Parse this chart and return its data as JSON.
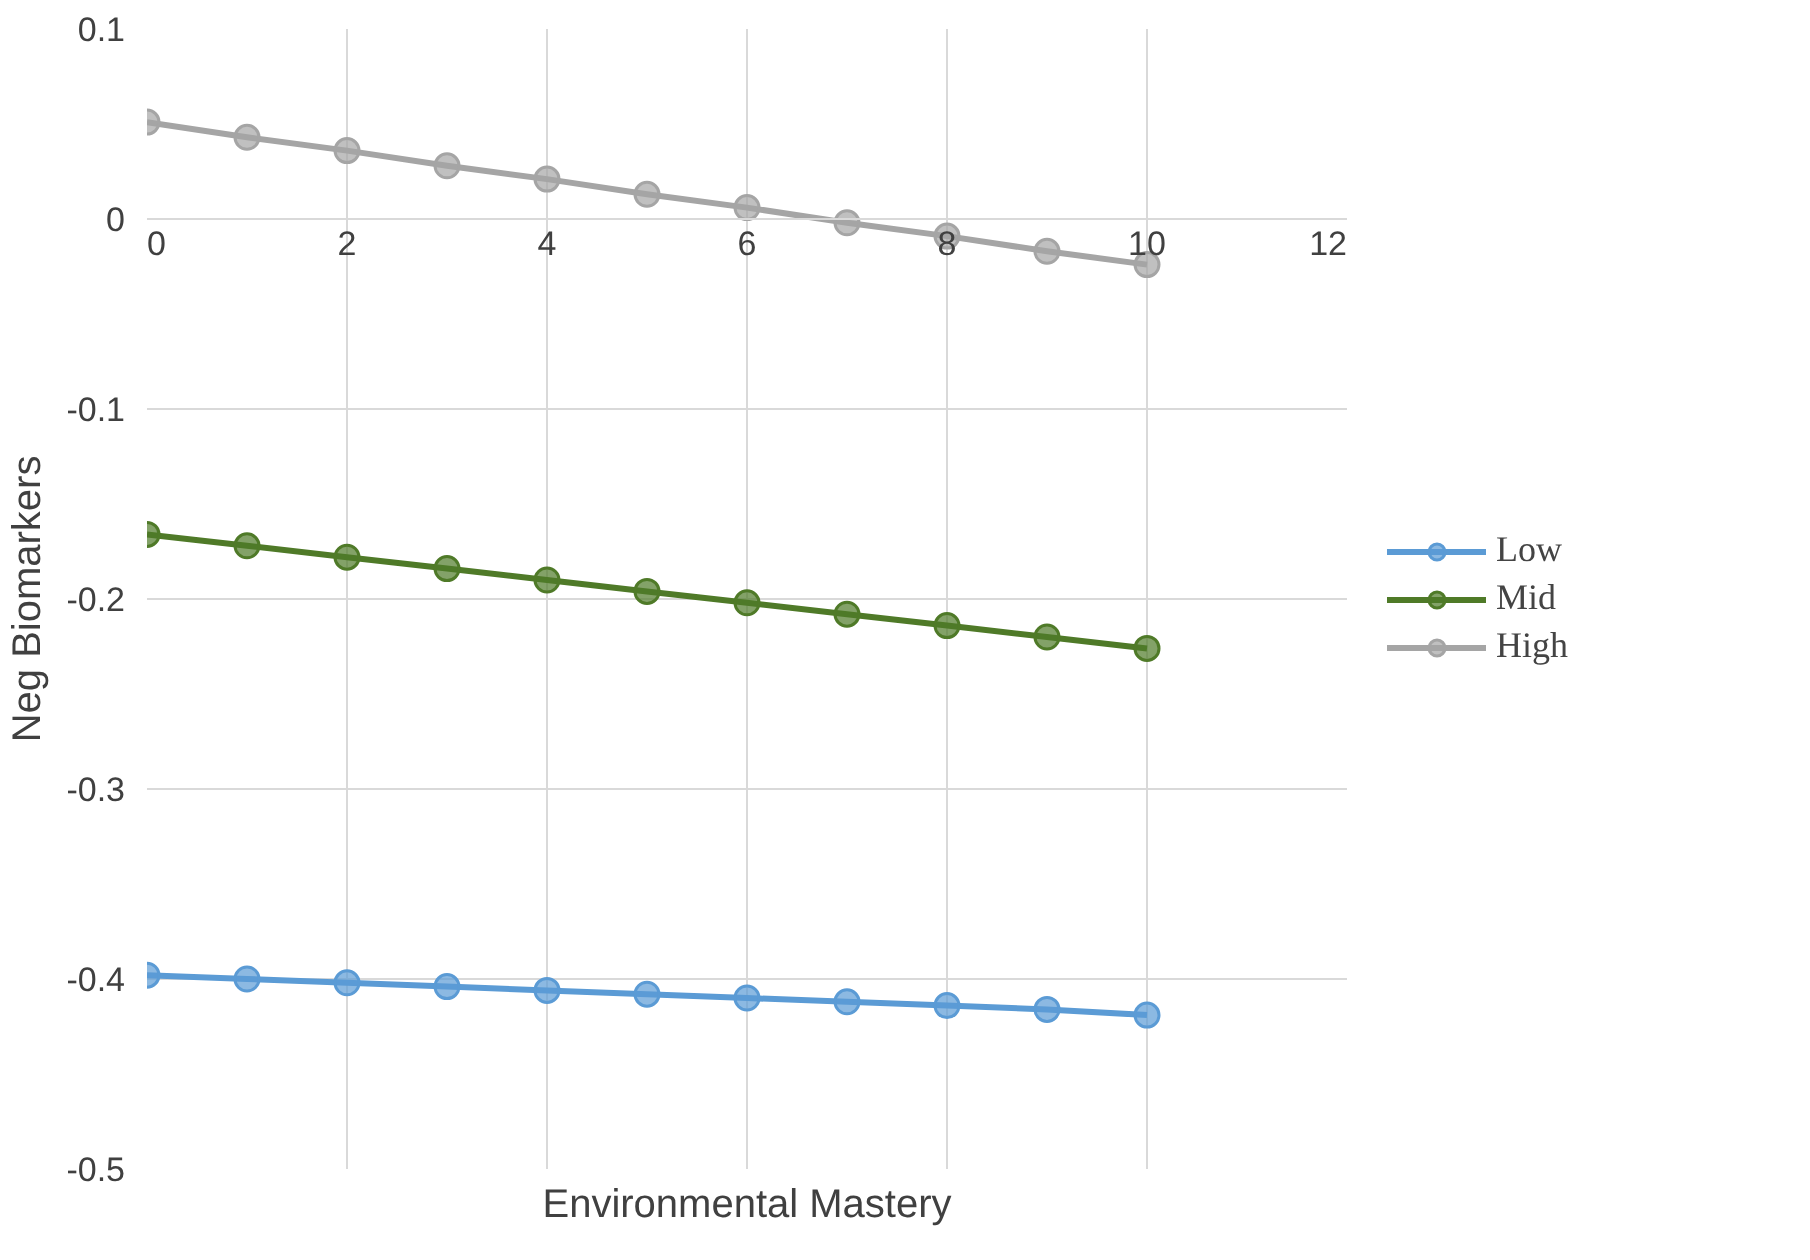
{
  "chart_data": {
    "type": "line",
    "xlabel": "Environmental Mastery",
    "ylabel": "Neg Biomarkers",
    "x": [
      0,
      1,
      2,
      3,
      4,
      5,
      6,
      7,
      8,
      9,
      10
    ],
    "series": [
      {
        "name": "Low",
        "color": "#5b9bd5",
        "values": [
          -0.398,
          -0.4,
          -0.402,
          -0.404,
          -0.406,
          -0.408,
          -0.41,
          -0.412,
          -0.414,
          -0.416,
          -0.419
        ]
      },
      {
        "name": "Mid",
        "color": "#4f7a28",
        "values": [
          -0.166,
          -0.172,
          -0.178,
          -0.184,
          -0.19,
          -0.196,
          -0.202,
          -0.208,
          -0.214,
          -0.22,
          -0.226
        ]
      },
      {
        "name": "High",
        "color": "#a5a5a5",
        "values": [
          0.051,
          0.043,
          0.036,
          0.028,
          0.021,
          0.013,
          0.006,
          -0.002,
          -0.009,
          -0.017,
          -0.024
        ]
      }
    ],
    "xlim": [
      0,
      12
    ],
    "xticks": [
      0,
      2,
      4,
      6,
      8,
      10,
      12
    ],
    "ylim": [
      -0.5,
      0.1
    ],
    "yticks": [
      -0.5,
      -0.4,
      -0.3,
      -0.2,
      -0.1,
      0,
      0.1
    ],
    "grid": true,
    "legend": "right",
    "marker": "circle",
    "line_style": "solid"
  }
}
